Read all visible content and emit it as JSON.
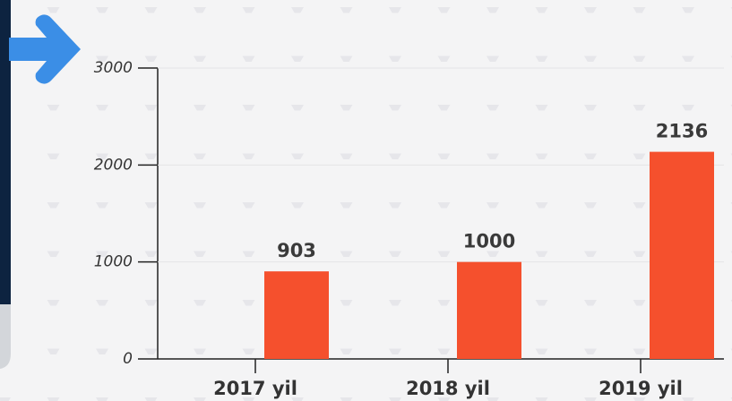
{
  "chart_data": {
    "type": "bar",
    "categories": [
      "2017 yil",
      "2018 yil",
      "2019 yil"
    ],
    "values": [
      903,
      1000,
      2136
    ],
    "color": "#f5502d",
    "ylim": [
      0,
      3000
    ],
    "yticks": [
      0,
      1000,
      2000,
      3000
    ],
    "grid": true
  }
}
